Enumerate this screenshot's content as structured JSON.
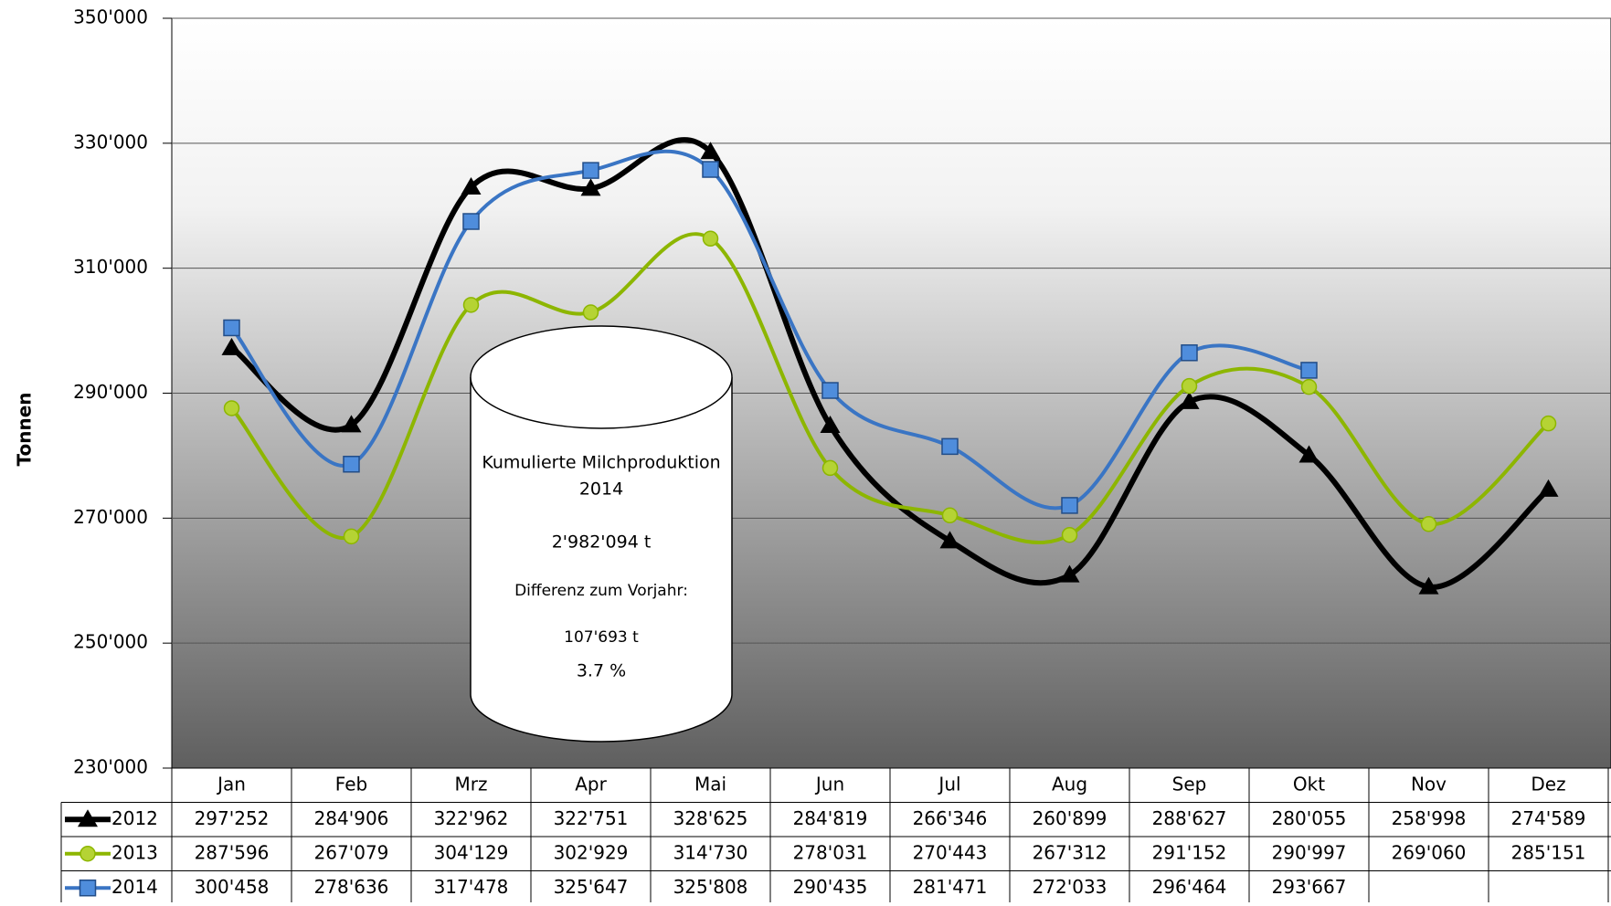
{
  "chart_data": {
    "type": "line",
    "y_label": "Tonnen",
    "categories": [
      "Jan",
      "Feb",
      "Mrz",
      "Apr",
      "Mai",
      "Jun",
      "Jul",
      "Aug",
      "Sep",
      "Okt",
      "Nov",
      "Dez"
    ],
    "series": [
      {
        "name": "2012",
        "color": "#000000",
        "marker": "triangle",
        "values": [
          297252,
          284906,
          322962,
          322751,
          328625,
          284819,
          266346,
          260899,
          288627,
          280055,
          258998,
          274589
        ],
        "value_labels": [
          "297'252",
          "284'906",
          "322'962",
          "322'751",
          "328'625",
          "284'819",
          "266'346",
          "260'899",
          "288'627",
          "280'055",
          "258'998",
          "274'589"
        ]
      },
      {
        "name": "2013",
        "color": "#8db600",
        "marker": "circle",
        "values": [
          287596,
          267079,
          304129,
          302929,
          314730,
          278031,
          270443,
          267312,
          291152,
          290997,
          269060,
          285151
        ],
        "value_labels": [
          "287'596",
          "267'079",
          "304'129",
          "302'929",
          "314'730",
          "278'031",
          "270'443",
          "267'312",
          "291'152",
          "290'997",
          "269'060",
          "285'151"
        ]
      },
      {
        "name": "2014",
        "color": "#3a75c4",
        "marker": "square",
        "values": [
          300458,
          278636,
          317478,
          325647,
          325808,
          290435,
          281471,
          272033,
          296464,
          293667,
          null,
          null
        ],
        "value_labels": [
          "300'458",
          "278'636",
          "317'478",
          "325'647",
          "325'808",
          "290'435",
          "281'471",
          "272'033",
          "296'464",
          "293'667",
          null,
          null
        ]
      }
    ],
    "ylim": [
      230000,
      350000
    ],
    "yticks": [
      {
        "value": 230000,
        "label": "230'000"
      },
      {
        "value": 250000,
        "label": "250'000"
      },
      {
        "value": 270000,
        "label": "270'000"
      },
      {
        "value": 290000,
        "label": "290'000"
      },
      {
        "value": 310000,
        "label": "310'000"
      },
      {
        "value": 330000,
        "label": "330'000"
      },
      {
        "value": 350000,
        "label": "350'000"
      }
    ],
    "grid": true,
    "annotation": {
      "lines": [
        "Kumulierte Milchproduktion",
        "2014",
        "2'982'094 t",
        "Differenz zum Vorjahr:",
        "107'693 t",
        "3.7 %"
      ]
    }
  }
}
